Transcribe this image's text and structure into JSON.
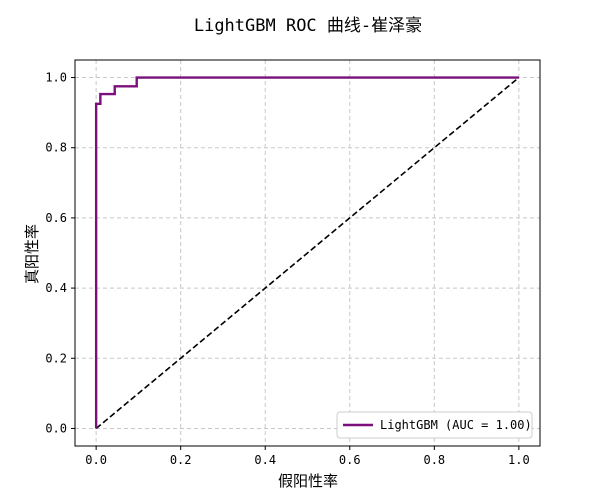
{
  "chart_data": {
    "type": "line",
    "title": "LightGBM ROC 曲线-崔泽豪",
    "xlabel": "假阳性率",
    "ylabel": "真阳性率",
    "xlim": [
      -0.05,
      1.05
    ],
    "ylim": [
      -0.05,
      1.05
    ],
    "x_ticks": [
      0.0,
      0.2,
      0.4,
      0.6,
      0.8,
      1.0
    ],
    "y_ticks": [
      0.0,
      0.2,
      0.4,
      0.6,
      0.8,
      1.0
    ],
    "x_tick_labels": [
      "0.0",
      "0.2",
      "0.4",
      "0.6",
      "0.8",
      "1.0"
    ],
    "y_tick_labels": [
      "0.0",
      "0.2",
      "0.4",
      "0.6",
      "0.8",
      "1.0"
    ],
    "grid": true,
    "legend_position": "lower-right",
    "series": [
      {
        "name": "LightGBM (AUC = 1.00)",
        "color": "#7b0f7b",
        "style": "solid",
        "x": [
          0.0,
          0.0,
          0.0,
          0.0,
          0.01,
          0.01,
          0.01,
          0.01,
          0.044,
          0.044,
          0.044,
          0.044,
          0.096,
          0.096,
          0.096,
          0.096,
          1.0
        ],
        "y": [
          0.0,
          0.0,
          0.925,
          0.925,
          0.925,
          0.925,
          0.953,
          0.953,
          0.953,
          0.953,
          0.975,
          0.975,
          0.975,
          0.975,
          1.0,
          1.0,
          1.0
        ]
      },
      {
        "name": "",
        "color": "#000000",
        "style": "dashed",
        "x": [
          0.0,
          1.0
        ],
        "y": [
          0.0,
          1.0
        ]
      }
    ]
  }
}
